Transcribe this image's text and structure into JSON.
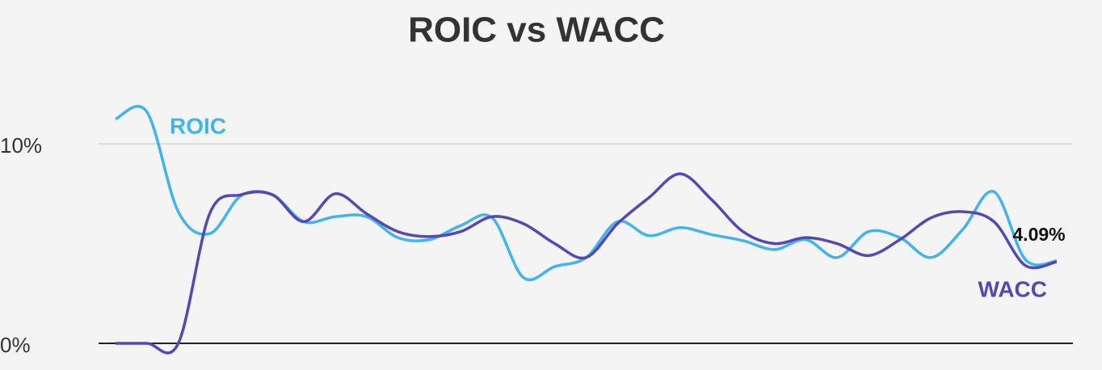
{
  "chart_data": {
    "type": "line",
    "title": "ROIC vs WACC",
    "categories": [
      null,
      null,
      null,
      null,
      null,
      null,
      null,
      null,
      null,
      null,
      null,
      null,
      null,
      null,
      null,
      null,
      null,
      null,
      null,
      null,
      null,
      null,
      null,
      null,
      null,
      null,
      null,
      null,
      null,
      null,
      null
    ],
    "series": [
      {
        "name": "ROIC",
        "color": "#41b4ee",
        "values": [
          11.25,
          11.6,
          6.6,
          5.5,
          7.4,
          7.45,
          6.1,
          6.35,
          6.35,
          5.3,
          5.2,
          5.9,
          6.3,
          3.3,
          3.85,
          4.3,
          6.1,
          5.4,
          5.8,
          5.45,
          5.15,
          4.7,
          5.2,
          4.3,
          5.6,
          5.3,
          4.3,
          5.7,
          7.6,
          4.2,
          4.13
        ]
      },
      {
        "name": "WACC",
        "color": "#5548b4",
        "values": [
          0,
          0,
          0,
          6.5,
          7.45,
          7.45,
          6.1,
          7.5,
          6.5,
          5.6,
          5.35,
          5.6,
          6.35,
          6.0,
          5.0,
          4.3,
          6.0,
          7.3,
          8.5,
          7.2,
          5.6,
          5.0,
          5.3,
          5.0,
          4.4,
          5.2,
          6.3,
          6.6,
          6.1,
          3.9,
          4.09
        ],
        "value_labels": [
          null,
          null,
          null,
          null,
          null,
          null,
          null,
          null,
          null,
          null,
          null,
          null,
          null,
          null,
          null,
          null,
          null,
          null,
          null,
          null,
          null,
          null,
          null,
          null,
          null,
          null,
          null,
          null,
          null,
          null,
          "4.09%"
        ]
      }
    ],
    "ylim": [
      0,
      13
    ],
    "yticks": [
      {
        "value": 0,
        "label": "0%"
      },
      {
        "value": 10,
        "label": "10%"
      }
    ],
    "grid": true
  }
}
